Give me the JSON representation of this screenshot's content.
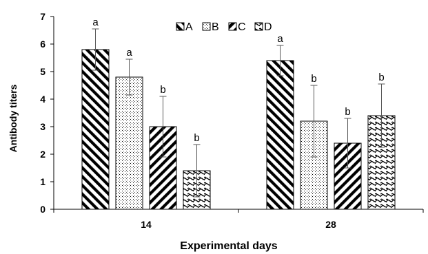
{
  "chart_data": {
    "type": "bar",
    "title": "",
    "xlabel": "Experimental days",
    "ylabel": "Antibody titers",
    "ylim": [
      0,
      7
    ],
    "yticks": [
      0,
      1,
      2,
      3,
      4,
      5,
      6,
      7
    ],
    "categories": [
      "14",
      "28"
    ],
    "legend_position": "top-center",
    "grid": false,
    "series": [
      {
        "name": "A",
        "pattern": "diagonal-back",
        "values": [
          5.8,
          5.4
        ],
        "errors": [
          0.75,
          0.55
        ],
        "letters": [
          "a",
          "a"
        ]
      },
      {
        "name": "B",
        "pattern": "dots",
        "values": [
          4.8,
          3.2
        ],
        "errors": [
          0.65,
          1.3
        ],
        "letters": [
          "a",
          "b"
        ]
      },
      {
        "name": "C",
        "pattern": "diagonal-forward",
        "values": [
          3.0,
          2.4
        ],
        "errors": [
          1.1,
          0.9
        ],
        "letters": [
          "b",
          "b"
        ]
      },
      {
        "name": "D",
        "pattern": "waves",
        "values": [
          1.4,
          3.4
        ],
        "errors": [
          0.95,
          1.15
        ],
        "letters": [
          "b",
          "b"
        ]
      }
    ]
  }
}
